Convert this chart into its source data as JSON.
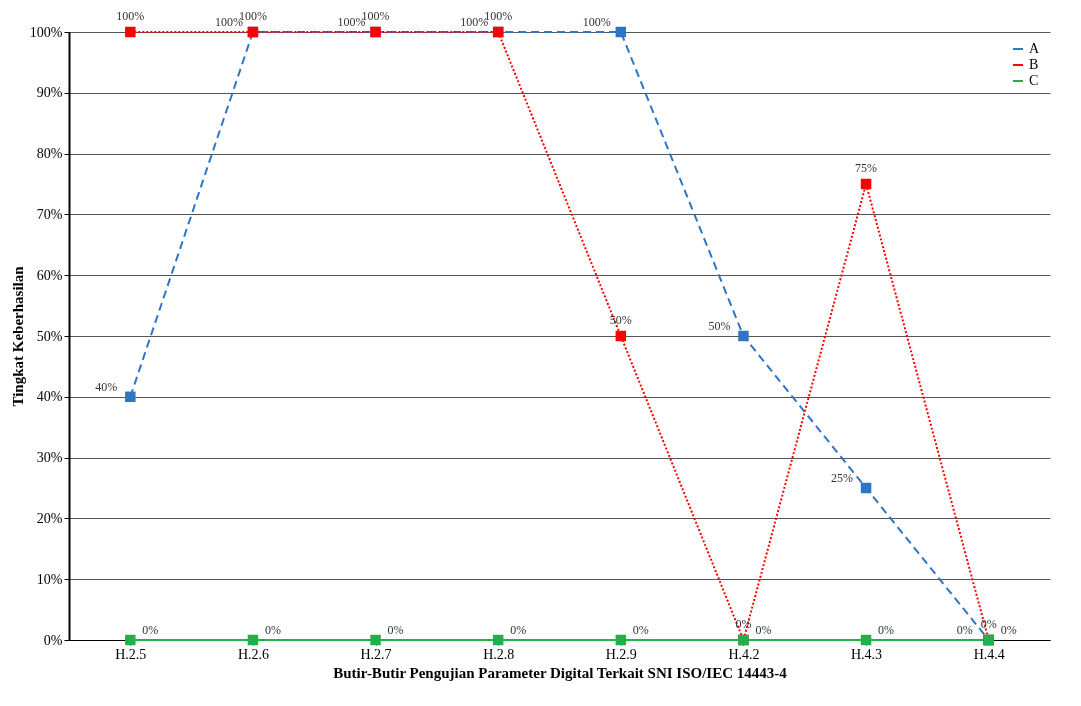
{
  "chart_data": {
    "type": "line",
    "xlabel": "Butir-Butir Pengujian Parameter Digital Terkait SNI ISO/IEC 14443-4",
    "ylabel": "Tingkat Keberhasilan",
    "categories": [
      "H.2.5",
      "H.2.6",
      "H.2.7",
      "H.2.8",
      "H.2.9",
      "H.4.2",
      "H.4.3",
      "H.4.4"
    ],
    "series": [
      {
        "name": "A",
        "color": "#2e75c6",
        "line_style": "dashed",
        "values": [
          40,
          100,
          100,
          100,
          100,
          50,
          25,
          0
        ],
        "value_labels": [
          "40%",
          "100%",
          "100%",
          "100%",
          "100%",
          "50%",
          "25%",
          "0%"
        ]
      },
      {
        "name": "B",
        "color": "#ff0000",
        "line_style": "dotted",
        "values": [
          100,
          100,
          100,
          100,
          50,
          0,
          75,
          0
        ],
        "value_labels": [
          "100%",
          "100%",
          "100%",
          "100%",
          "50%",
          "0%",
          "75%",
          "0%"
        ]
      },
      {
        "name": "C",
        "color": "#22b04c",
        "line_style": "solid",
        "values": [
          0,
          0,
          0,
          0,
          0,
          0,
          0,
          0
        ],
        "value_labels": [
          "0%",
          "0%",
          "0%",
          "0%",
          "0%",
          "0%",
          "0%",
          "0%"
        ]
      }
    ],
    "ylim": [
      0,
      100
    ],
    "yticks": [
      {
        "value": 0,
        "label": "0%"
      },
      {
        "value": 10,
        "label": "10%"
      },
      {
        "value": 20,
        "label": "20%"
      },
      {
        "value": 30,
        "label": "30%"
      },
      {
        "value": 40,
        "label": "40%"
      },
      {
        "value": 50,
        "label": "50%"
      },
      {
        "value": 60,
        "label": "60%"
      },
      {
        "value": 70,
        "label": "70%"
      },
      {
        "value": 80,
        "label": "80%"
      },
      {
        "value": 90,
        "label": "90%"
      },
      {
        "value": 100,
        "label": "100%"
      }
    ],
    "grid": "y",
    "legend": "top right",
    "marker": "square"
  }
}
